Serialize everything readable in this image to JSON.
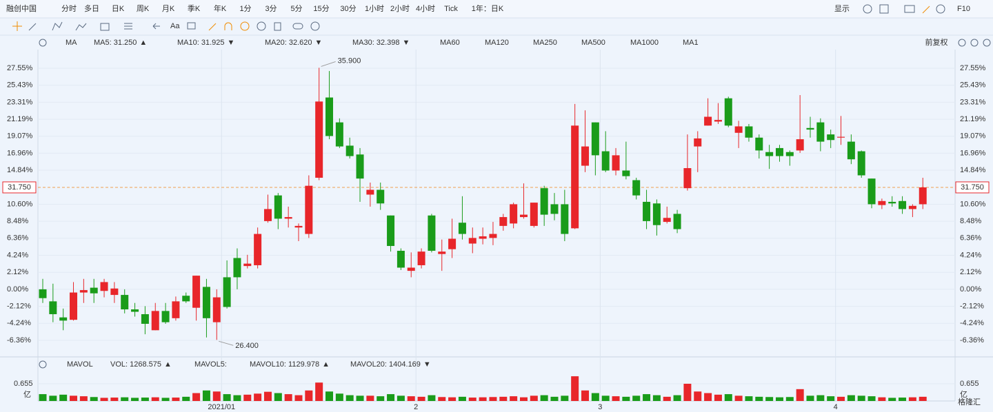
{
  "toolbar": {
    "tabs": [
      "融创中国",
      "分时",
      "多日",
      "日K",
      "周K",
      "月K",
      "季K",
      "年K",
      "1分",
      "3分",
      "5分",
      "15分",
      "30分",
      "1小时",
      "2小时",
      "4小时",
      "Tick",
      "1年：日K"
    ],
    "active": "日K",
    "right": [
      "显示",
      "F10"
    ],
    "font_tool": "Aa"
  },
  "chart_data": {
    "type": "candlestick",
    "ma_legend": {
      "title": "MA",
      "items": [
        {
          "text": "MA5: 31.250",
          "arrow": "▲",
          "color": "#f08c00"
        },
        {
          "text": "MA10: 31.925",
          "arrow": "▼",
          "color": "#1aa0c8"
        },
        {
          "text": "MA20: 32.620",
          "arrow": "▼",
          "color": "#e040a0"
        },
        {
          "text": "MA30: 32.398",
          "arrow": "▼",
          "color": "#1060a0"
        },
        {
          "text": "MA60",
          "color": "#b0ddd0"
        },
        {
          "text": "MA120",
          "color": "#f0b0b8"
        },
        {
          "text": "MA250",
          "color": "#a8dce8"
        },
        {
          "text": "MA500",
          "color": "#f5d7a0"
        },
        {
          "text": "MA1000",
          "color": "#c8b0e0"
        },
        {
          "text": "MA1",
          "color": "#b8c8d8"
        }
      ],
      "adjust": "前复权"
    },
    "up_color": "#e8262a",
    "down_color": "#1a9c1a",
    "ylim": [
      -6.36,
      27.55
    ],
    "yticks": [
      {
        "value": 27.55,
        "label": "27.55%"
      },
      {
        "value": 25.43,
        "label": "25.43%"
      },
      {
        "value": 23.31,
        "label": "23.31%"
      },
      {
        "value": 21.19,
        "label": "21.19%"
      },
      {
        "value": 19.07,
        "label": "19.07%"
      },
      {
        "value": 16.96,
        "label": "16.96%"
      },
      {
        "value": 14.84,
        "label": "14.84%"
      },
      {
        "value": 10.6,
        "label": "10.60%"
      },
      {
        "value": 8.48,
        "label": "8.48%"
      },
      {
        "value": 6.36,
        "label": "6.36%"
      },
      {
        "value": 4.24,
        "label": "4.24%"
      },
      {
        "value": 2.12,
        "label": "2.12%"
      },
      {
        "value": 0,
        "label": "0.00%"
      },
      {
        "value": -2.12,
        "label": "-2.12%"
      },
      {
        "value": -4.24,
        "label": "-4.24%"
      },
      {
        "value": -6.36,
        "label": "-6.36%"
      }
    ],
    "grid": true,
    "last_price_label": "31.750",
    "high_label": "35.900",
    "low_label": "26.400",
    "xticks": [
      {
        "value": 17,
        "label": "2021/01"
      },
      {
        "value": 36,
        "label": "2"
      },
      {
        "value": 54,
        "label": "3"
      },
      {
        "value": 77,
        "label": "4"
      }
    ],
    "ohlc": [
      [
        0,
        1.3,
        -1.7,
        -1.1
      ],
      [
        -1.5,
        0.7,
        -4.1,
        -3.1
      ],
      [
        -3.5,
        -2.4,
        -5.1,
        -3.9
      ],
      [
        -3.8,
        0.9,
        -3.9,
        -0.4
      ],
      [
        -0.4,
        1.3,
        -1.7,
        -0.1
      ],
      [
        0.2,
        1.3,
        -1.7,
        -0.5
      ],
      [
        -0.2,
        1.3,
        -1.0,
        0.9
      ],
      [
        -0.7,
        0.9,
        -1.7,
        0.1
      ],
      [
        -0.7,
        0,
        -3.0,
        -2.5
      ],
      [
        -2.5,
        -1.7,
        -3.4,
        -2.8
      ],
      [
        -3.1,
        -2.1,
        -5.6,
        -4.3
      ],
      [
        -5.1,
        -1.7,
        -5.1,
        -2.7
      ],
      [
        -2.7,
        -1.7,
        -4.3,
        -4.1
      ],
      [
        -3.6,
        -0.9,
        -3.9,
        -1.5
      ],
      [
        -0.8,
        -0.4,
        -1.7,
        -1.5
      ],
      [
        -2.3,
        1.7,
        -3.9,
        1.7
      ],
      [
        0.3,
        1.3,
        -6.0,
        -3.6
      ],
      [
        -4.1,
        0,
        -6.3,
        -1.0
      ],
      [
        1.5,
        3.6,
        -2.4,
        -2.2
      ],
      [
        3.9,
        5.1,
        0,
        1.5
      ],
      [
        2.9,
        4.3,
        2.6,
        3.2
      ],
      [
        3.0,
        7.7,
        2.6,
        6.9
      ],
      [
        8.5,
        11.8,
        8.3,
        10.0
      ],
      [
        11.7,
        12.0,
        7.5,
        8.8
      ],
      [
        8.8,
        10.3,
        7.7,
        9.0
      ],
      [
        7.7,
        8.2,
        6.0,
        7.9
      ],
      [
        6.9,
        14.2,
        6.4,
        12.9
      ],
      [
        13.9,
        27.6,
        13.6,
        23.4
      ],
      [
        23.9,
        27.2,
        18.7,
        19.1
      ],
      [
        20.8,
        21.3,
        17.6,
        17.8
      ],
      [
        17.9,
        18.9,
        16.3,
        16.6
      ],
      [
        16.8,
        17.6,
        10.9,
        13.8
      ],
      [
        11.8,
        13.3,
        10.3,
        12.4
      ],
      [
        12.4,
        13.3,
        9.9,
        10.7
      ],
      [
        9.2,
        9.2,
        4.7,
        5.4
      ],
      [
        4.8,
        5.1,
        2.4,
        2.7
      ],
      [
        2.3,
        4.6,
        1.5,
        2.7
      ],
      [
        3.0,
        5.1,
        2.6,
        4.7
      ],
      [
        9.2,
        9.4,
        4.6,
        4.8
      ],
      [
        4.4,
        6.2,
        2.3,
        4.7
      ],
      [
        5.0,
        8.8,
        3.9,
        6.3
      ],
      [
        8.3,
        11.6,
        6.2,
        6.9
      ],
      [
        5.7,
        7.7,
        4.5,
        6.4
      ],
      [
        6.3,
        7.7,
        5.6,
        6.6
      ],
      [
        6.4,
        8.4,
        5.5,
        6.9
      ],
      [
        7.9,
        9.4,
        7.3,
        9.0
      ],
      [
        8.2,
        10.8,
        7.6,
        10.6
      ],
      [
        9.0,
        13.2,
        8.8,
        9.3
      ],
      [
        7.9,
        10.8,
        7.7,
        10.8
      ],
      [
        12.6,
        12.9,
        7.9,
        9.3
      ],
      [
        10.6,
        12.0,
        8.6,
        9.4
      ],
      [
        10.6,
        12.4,
        6.0,
        6.9
      ],
      [
        7.6,
        23.1,
        7.5,
        20.4
      ],
      [
        15.4,
        22.3,
        14.6,
        17.8
      ],
      [
        20.8,
        20.8,
        14.2,
        16.7
      ],
      [
        17.2,
        19.7,
        14.6,
        14.8
      ],
      [
        14.8,
        17.6,
        14.2,
        16.7
      ],
      [
        14.8,
        18.4,
        13.7,
        14.1
      ],
      [
        13.6,
        13.9,
        11.2,
        11.7
      ],
      [
        10.9,
        12.4,
        7.5,
        8.5
      ],
      [
        10.7,
        11.2,
        6.7,
        8.0
      ],
      [
        8.4,
        10.3,
        8.2,
        8.9
      ],
      [
        9.4,
        9.9,
        7.0,
        7.5
      ],
      [
        12.6,
        19.3,
        12.3,
        15.1
      ],
      [
        17.8,
        19.7,
        14.6,
        18.8
      ],
      [
        20.4,
        23.8,
        20.4,
        21.5
      ],
      [
        20.9,
        23.2,
        20.6,
        21.1
      ],
      [
        23.8,
        24.0,
        20.2,
        20.4
      ],
      [
        19.5,
        21.0,
        17.6,
        20.3
      ],
      [
        20.3,
        20.6,
        18.4,
        18.9
      ],
      [
        18.9,
        19.3,
        16.3,
        17.3
      ],
      [
        17.1,
        18.0,
        15.0,
        16.6
      ],
      [
        17.6,
        18.0,
        15.9,
        16.6
      ],
      [
        17.1,
        17.3,
        15.4,
        16.6
      ],
      [
        17.3,
        24.2,
        17.0,
        18.7
      ],
      [
        20.1,
        21.5,
        18.9,
        19.9
      ],
      [
        20.8,
        21.3,
        17.2,
        18.4
      ],
      [
        19.3,
        19.9,
        17.6,
        18.6
      ],
      [
        18.9,
        21.6,
        18.0,
        19.0
      ],
      [
        18.4,
        19.3,
        15.6,
        16.2
      ],
      [
        17.2,
        17.3,
        13.9,
        14.2
      ],
      [
        13.8,
        13.8,
        10.1,
        10.6
      ],
      [
        10.5,
        11.3,
        10.0,
        11.0
      ],
      [
        10.9,
        11.6,
        10.3,
        10.7
      ],
      [
        11.0,
        11.6,
        9.4,
        10.0
      ],
      [
        10.0,
        10.6,
        9.0,
        10.4
      ],
      [
        10.6,
        13.9,
        10.0,
        12.7
      ]
    ],
    "vol_legend": {
      "title": "MAVOL",
      "items": [
        {
          "text": "VOL: 1268.575",
          "arrow": "▲",
          "color": "#e8262a"
        },
        {
          "text": "MAVOL5:",
          "color": "#f5c8b0"
        },
        {
          "text": "MAVOL10: 1129.978",
          "arrow": "▲",
          "color": "#1aa0c8"
        },
        {
          "text": "MAVOL20: 1404.169",
          "arrow": "▼",
          "color": "#e040a0"
        }
      ]
    },
    "vol_ylim": [
      0,
      0.655
    ],
    "vol_yticks": [
      0.655
    ],
    "vol_unit": "亿",
    "volume": [
      0.26,
      0.2,
      0.24,
      0.2,
      0.18,
      0.15,
      0.12,
      0.13,
      0.14,
      0.12,
      0.13,
      0.14,
      0.12,
      0.13,
      0.16,
      0.3,
      0.4,
      0.36,
      0.26,
      0.22,
      0.24,
      0.28,
      0.35,
      0.3,
      0.26,
      0.22,
      0.4,
      0.7,
      0.36,
      0.28,
      0.22,
      0.2,
      0.2,
      0.18,
      0.26,
      0.2,
      0.18,
      0.16,
      0.22,
      0.15,
      0.14,
      0.16,
      0.13,
      0.14,
      0.15,
      0.16,
      0.18,
      0.14,
      0.2,
      0.22,
      0.16,
      0.2,
      0.94,
      0.4,
      0.3,
      0.2,
      0.18,
      0.16,
      0.2,
      0.26,
      0.22,
      0.16,
      0.22,
      0.655,
      0.36,
      0.3,
      0.24,
      0.26,
      0.2,
      0.18,
      0.16,
      0.15,
      0.14,
      0.15,
      0.45,
      0.2,
      0.22,
      0.18,
      0.16,
      0.22,
      0.2,
      0.18,
      0.14,
      0.12,
      0.13,
      0.14,
      0.16
    ]
  },
  "watermark": "格隆汇"
}
